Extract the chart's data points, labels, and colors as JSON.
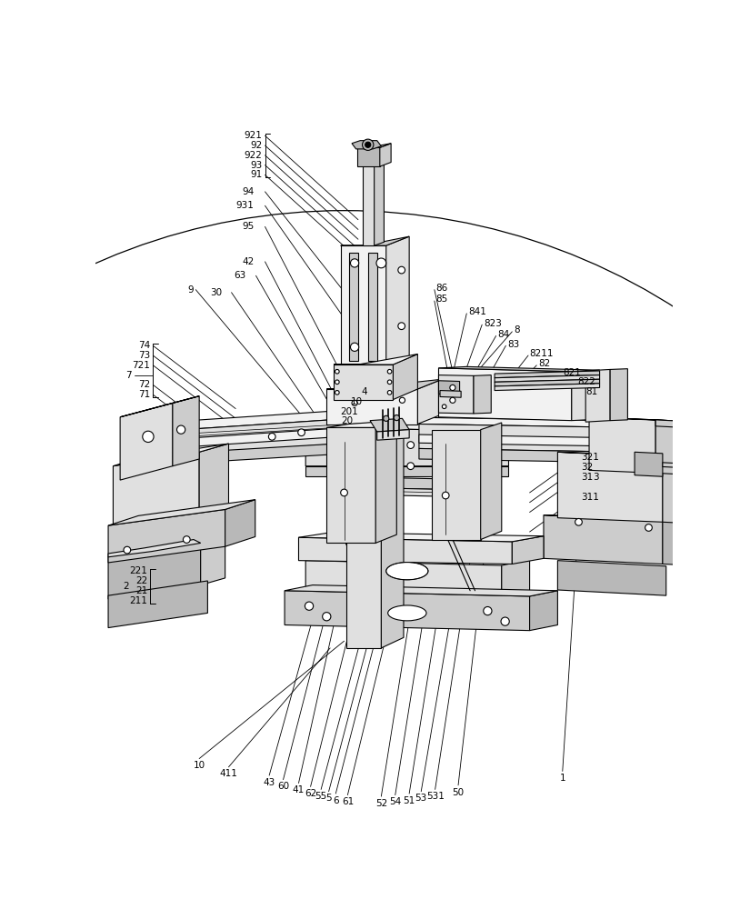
{
  "bg_color": "#ffffff",
  "line_color": "#000000",
  "fig_w": 8.25,
  "fig_h": 10.0,
  "dpi": 100,
  "font_size": 7.2,
  "lw_main": 0.8,
  "lw_thin": 0.5,
  "fc_white": "#ffffff",
  "fc_light": "#f2f2f2",
  "fc_mid": "#e0e0e0",
  "fc_dark": "#cccccc",
  "fc_darker": "#b8b8b8",
  "fc_black": "#404040"
}
